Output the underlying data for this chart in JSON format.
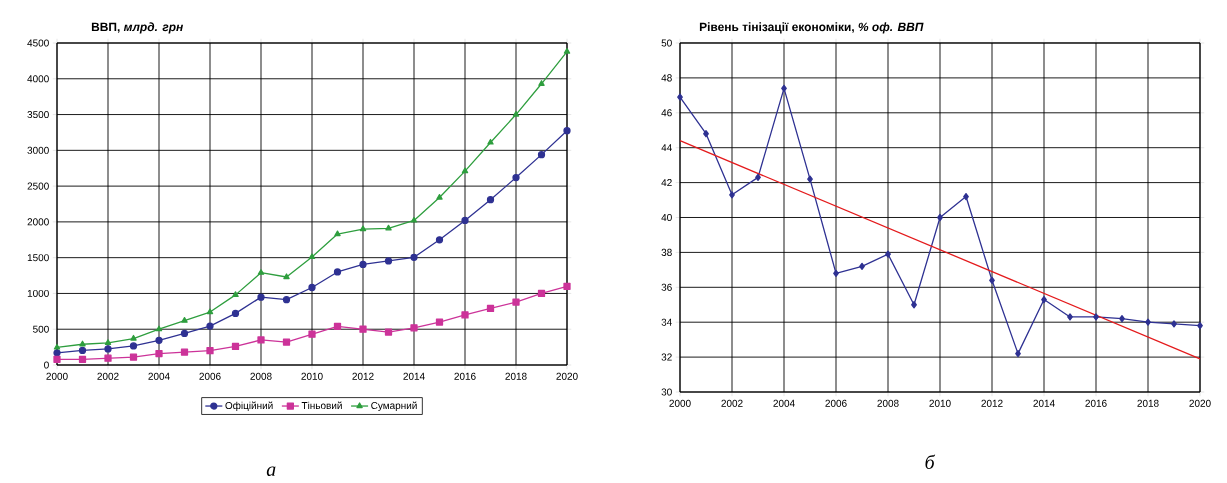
{
  "chart_data": [
    {
      "type": "line",
      "title": "ВВП, *млрд. грн*",
      "annotations": [
        "а"
      ],
      "x": [
        2000,
        2001,
        2002,
        2003,
        2004,
        2005,
        2006,
        2007,
        2008,
        2009,
        2010,
        2011,
        2012,
        2013,
        2014,
        2015,
        2016,
        2017,
        2018,
        2019,
        2020
      ],
      "series": [
        {
          "name": "Офіційний",
          "color": "#2e3192",
          "marker": "circle",
          "values": [
            170,
            204,
            225,
            267,
            345,
            441,
            544,
            721,
            948,
            913,
            1083,
            1300,
            1405,
            1455,
            1505,
            1750,
            2020,
            2310,
            2620,
            2940,
            3275
          ]
        },
        {
          "name": "Тіньовий",
          "color": "#cc3399",
          "marker": "square",
          "values": [
            80,
            80,
            95,
            110,
            160,
            180,
            200,
            260,
            350,
            320,
            430,
            540,
            500,
            460,
            520,
            600,
            700,
            790,
            880,
            1000,
            1100
          ]
        },
        {
          "name": "Сумарний",
          "color": "#2e9e3e",
          "marker": "triangle",
          "values": [
            245,
            290,
            310,
            370,
            500,
            620,
            740,
            980,
            1290,
            1230,
            1510,
            1830,
            1900,
            1910,
            2020,
            2340,
            2710,
            3110,
            3500,
            3930,
            4380
          ]
        }
      ],
      "xlim": [
        2000,
        2020
      ],
      "xticks": [
        2000,
        2002,
        2004,
        2006,
        2008,
        2010,
        2012,
        2014,
        2016,
        2018,
        2020
      ],
      "ylim": [
        0,
        4500
      ],
      "yticks": [
        0,
        500,
        1000,
        1500,
        2000,
        2500,
        3000,
        3500,
        4000,
        4500
      ],
      "grid": true,
      "legend": "bottom"
    },
    {
      "type": "line",
      "title": "Рівень тінізації економіки, *% оф. ВВП*",
      "annotations": [
        "б"
      ],
      "x": [
        2000,
        2001,
        2002,
        2003,
        2004,
        2005,
        2006,
        2007,
        2008,
        2009,
        2010,
        2011,
        2012,
        2013,
        2014,
        2015,
        2016,
        2017,
        2018,
        2019,
        2020
      ],
      "series": [
        {
          "color": "#2e3192",
          "marker": "diamond",
          "values": [
            46.9,
            44.8,
            41.3,
            42.3,
            47.4,
            42.2,
            36.8,
            37.2,
            37.9,
            35.0,
            40.0,
            41.2,
            36.4,
            32.2,
            35.3,
            34.3,
            34.3,
            34.2,
            34.0,
            33.9,
            33.8
          ]
        },
        {
          "color": "#e41a1c",
          "marker": "none",
          "x": [
            2000,
            2020
          ],
          "values": [
            44.4,
            31.9
          ]
        }
      ],
      "xlim": [
        2000,
        2020
      ],
      "xticks": [
        2000,
        2002,
        2004,
        2006,
        2008,
        2010,
        2012,
        2014,
        2016,
        2018,
        2020
      ],
      "ylim": [
        30,
        50
      ],
      "yticks": [
        30,
        32,
        34,
        36,
        38,
        40,
        42,
        44,
        46,
        48,
        50
      ],
      "grid": true
    }
  ]
}
